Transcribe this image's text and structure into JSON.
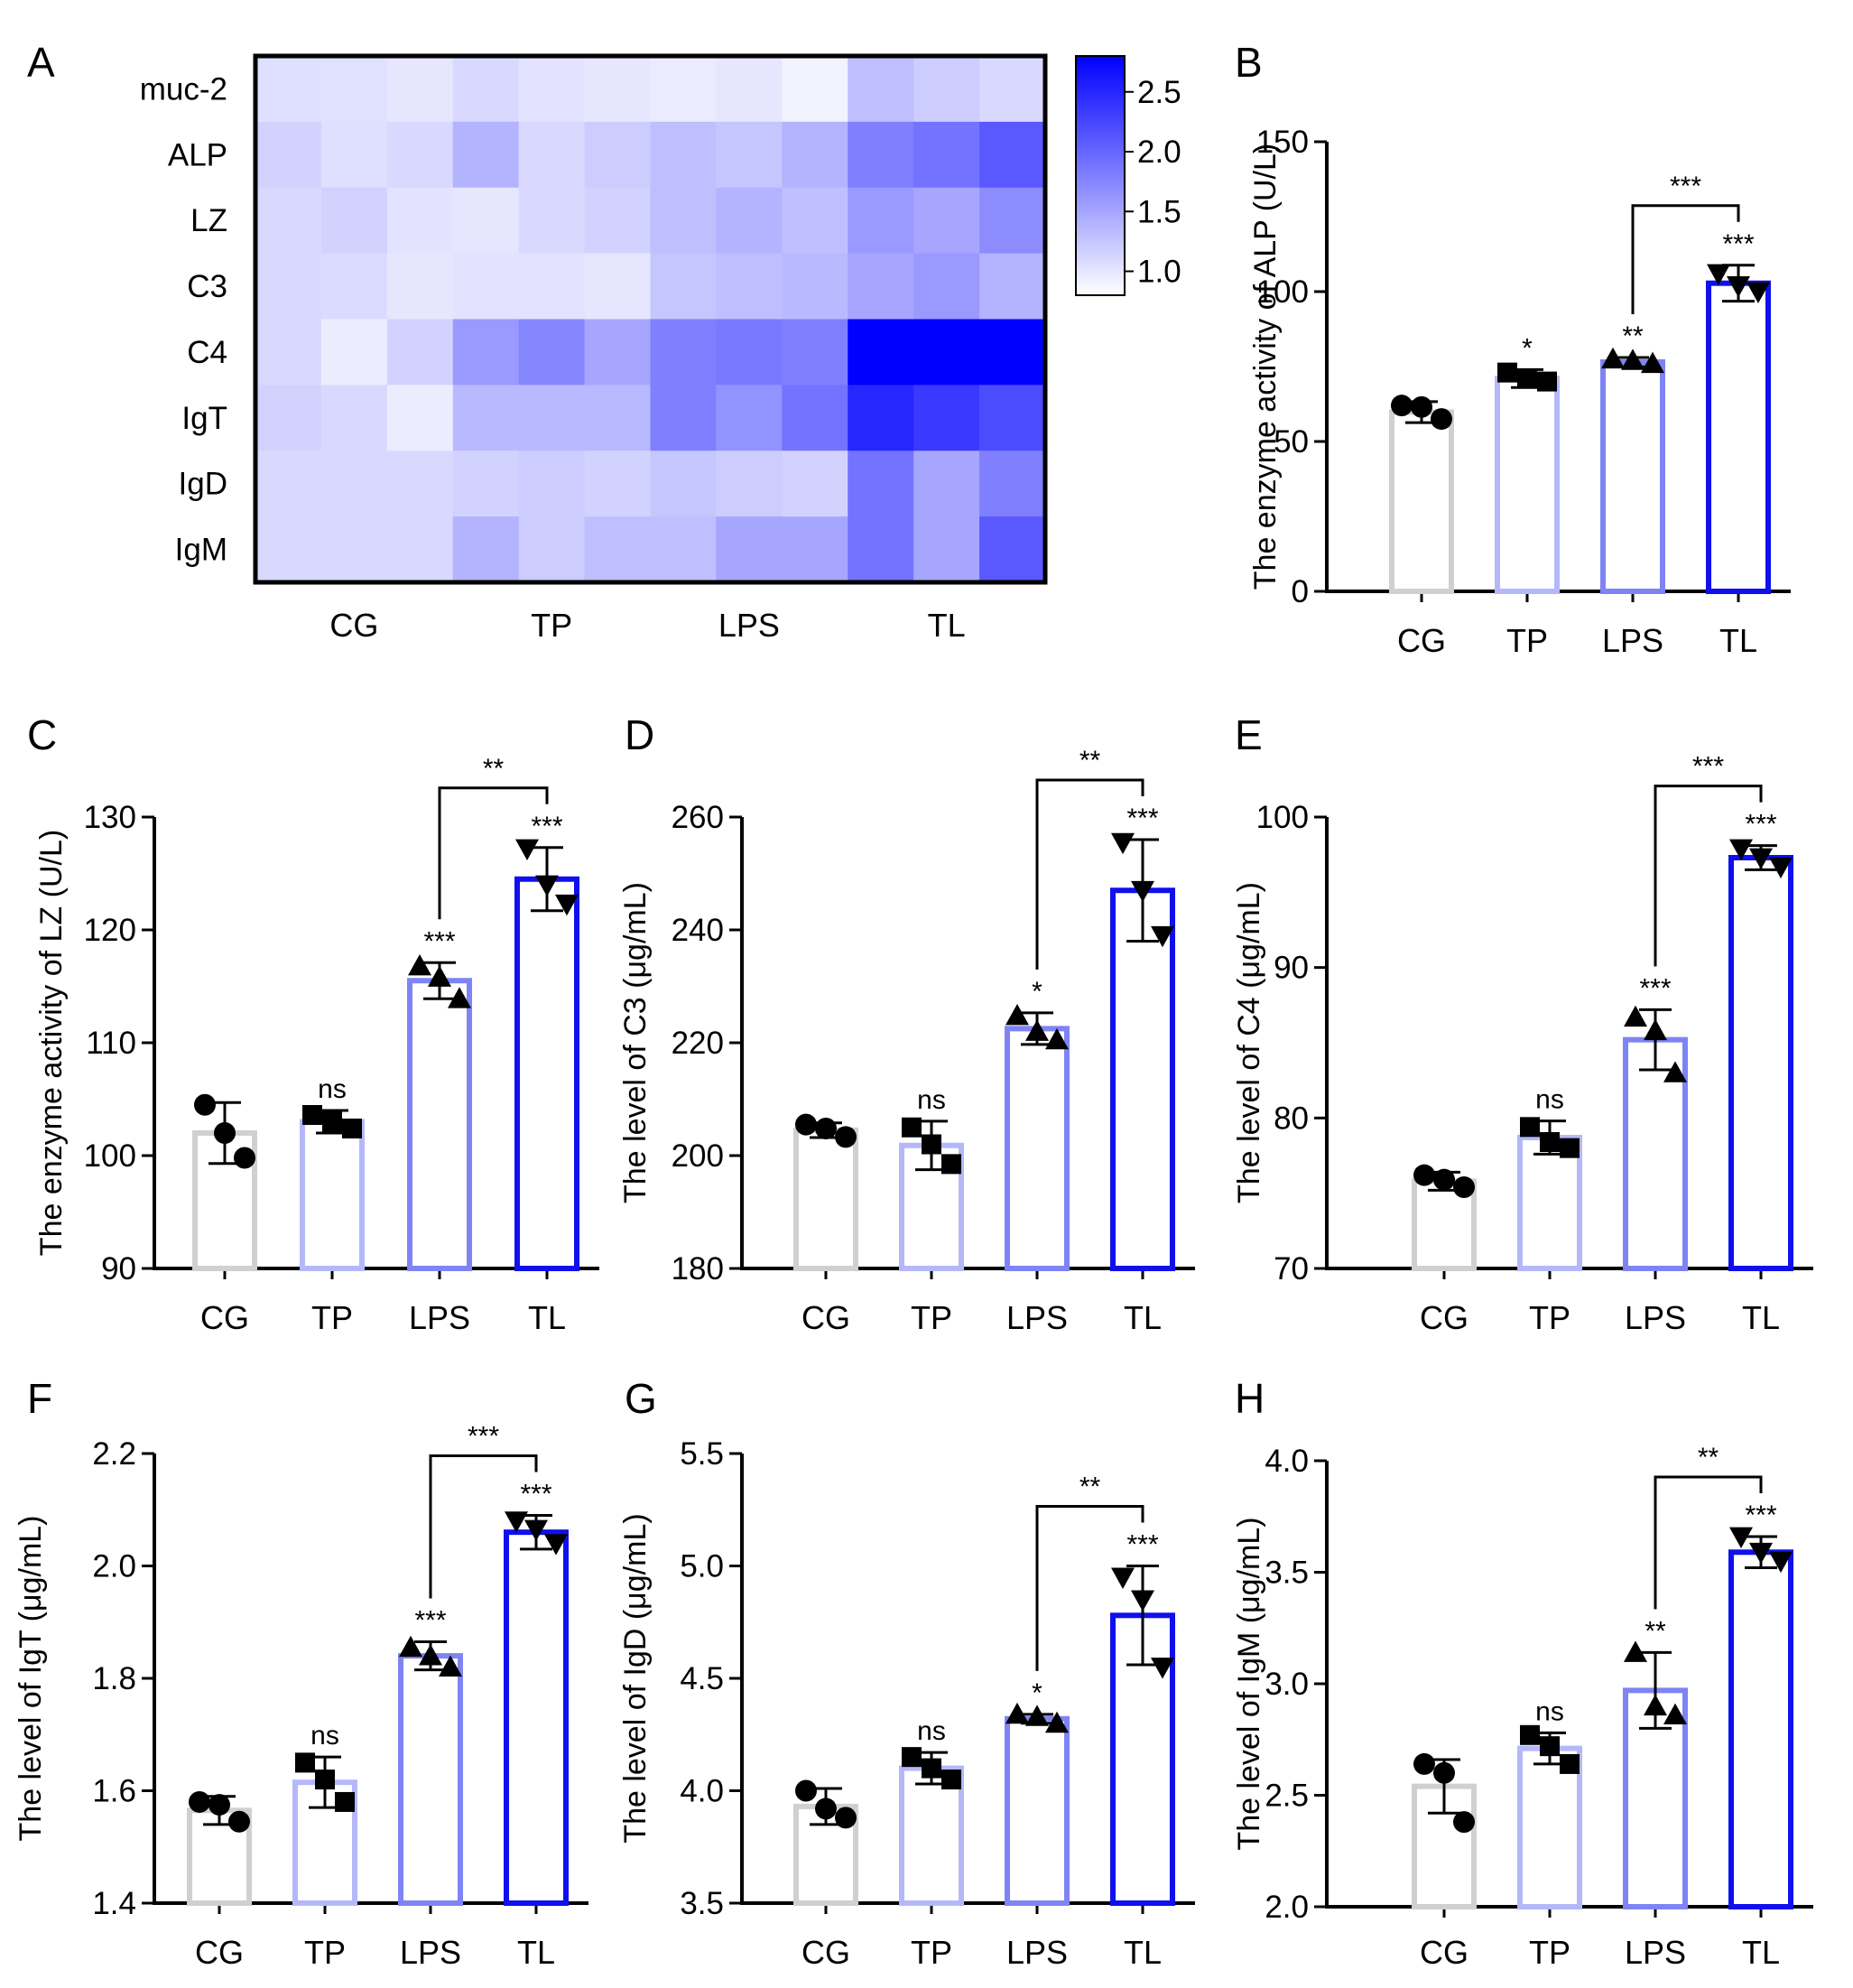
{
  "heatmap": {
    "panel": "A",
    "rows": [
      "muc-2",
      "ALP",
      "LZ",
      "C3",
      "C4",
      "IgT",
      "IgD",
      "IgM"
    ],
    "groups": [
      "CG",
      "TP",
      "LPS",
      "TL"
    ],
    "values": [
      [
        1.05,
        1.04,
        1.0,
        1.1,
        1.02,
        1.0,
        0.96,
        1.0,
        0.9,
        1.3,
        1.2,
        1.1
      ],
      [
        1.15,
        1.05,
        1.1,
        1.4,
        1.1,
        1.2,
        1.3,
        1.25,
        1.4,
        1.8,
        1.9,
        2.1
      ],
      [
        1.1,
        1.15,
        1.02,
        1.0,
        1.1,
        1.15,
        1.3,
        1.4,
        1.3,
        1.6,
        1.5,
        1.7
      ],
      [
        1.1,
        1.08,
        1.0,
        1.02,
        1.02,
        1.0,
        1.25,
        1.3,
        1.35,
        1.5,
        1.6,
        1.4
      ],
      [
        1.1,
        0.95,
        1.15,
        1.6,
        1.75,
        1.5,
        1.8,
        1.85,
        1.8,
        2.8,
        2.95,
        3.0
      ],
      [
        1.15,
        1.1,
        0.95,
        1.35,
        1.35,
        1.35,
        1.8,
        1.65,
        1.9,
        2.5,
        2.35,
        2.2
      ],
      [
        1.1,
        1.1,
        1.1,
        1.15,
        1.2,
        1.15,
        1.25,
        1.2,
        1.15,
        1.9,
        1.5,
        1.8
      ],
      [
        1.1,
        1.1,
        1.1,
        1.4,
        1.2,
        1.3,
        1.3,
        1.5,
        1.5,
        1.9,
        1.5,
        2.1
      ]
    ],
    "colorbar": {
      "min": 0.8,
      "max": 2.8,
      "ticks": [
        "2.5",
        "2.0",
        "1.5",
        "1.0"
      ],
      "low_color": "#ffffff",
      "high_color": "#0000ff"
    }
  },
  "chart_data": [
    {
      "panel": "B",
      "type": "bar",
      "categories": [
        "CG",
        "TP",
        "LPS",
        "TL"
      ],
      "values": [
        59.8,
        71.0,
        76.5,
        102.8
      ],
      "errors": [
        3.5,
        3.0,
        1.5,
        6.0
      ],
      "points": [
        [
          62.0,
          61.5,
          57.5
        ],
        [
          73.0,
          71.0,
          70.0
        ],
        [
          77.5,
          77.0,
          76.0
        ],
        [
          106.0,
          102.0,
          100.0
        ]
      ],
      "ylabel": "The enzyme activity of ALP (U/L)",
      "ylim": [
        0,
        150
      ],
      "yticks": [
        "0",
        "50",
        "100",
        "150"
      ],
      "sig_labels": [
        "",
        "*",
        "**",
        "***"
      ],
      "bracket": {
        "from": "LPS",
        "to": "TL",
        "label": "***"
      }
    },
    {
      "panel": "C",
      "type": "bar",
      "categories": [
        "CG",
        "TP",
        "LPS",
        "TL"
      ],
      "values": [
        102.0,
        103.0,
        115.5,
        124.5
      ],
      "errors": [
        2.7,
        1.0,
        1.6,
        2.8
      ],
      "points": [
        [
          104.5,
          102.0,
          99.8
        ],
        [
          103.6,
          103.0,
          102.4
        ],
        [
          116.8,
          115.8,
          113.9
        ],
        [
          127.2,
          124.0,
          122.3
        ]
      ],
      "ylabel": "The enzyme activity of LZ (U/L)",
      "ylim": [
        90,
        130
      ],
      "yticks": [
        "90",
        "100",
        "110",
        "120",
        "130"
      ],
      "sig_labels": [
        "",
        "ns",
        "***",
        "***"
      ],
      "bracket": {
        "from": "LPS",
        "to": "TL",
        "label": "**"
      }
    },
    {
      "panel": "D",
      "type": "bar",
      "categories": [
        "CG",
        "TP",
        "LPS",
        "TL"
      ],
      "values": [
        204.5,
        201.8,
        222.5,
        247.0
      ],
      "errors": [
        1.3,
        4.3,
        2.8,
        9.0
      ],
      "points": [
        [
          205.5,
          204.8,
          203.3
        ],
        [
          205.0,
          202.0,
          198.5
        ],
        [
          224.8,
          222.0,
          220.5
        ],
        [
          255.5,
          247.0,
          239.0
        ]
      ],
      "ylabel": "The level of C3 (μg/mL)",
      "ylim": [
        180,
        260
      ],
      "yticks": [
        "180",
        "200",
        "220",
        "240",
        "260"
      ],
      "sig_labels": [
        "",
        "ns",
        "*",
        "***"
      ],
      "bracket": {
        "from": "LPS",
        "to": "TL",
        "label": "**"
      }
    },
    {
      "panel": "E",
      "type": "bar",
      "categories": [
        "CG",
        "TP",
        "LPS",
        "TL"
      ],
      "values": [
        75.8,
        78.7,
        85.2,
        97.3
      ],
      "errors": [
        0.6,
        1.1,
        2.0,
        0.8
      ],
      "points": [
        [
          76.2,
          75.9,
          75.4
        ],
        [
          79.4,
          78.4,
          78.0
        ],
        [
          86.7,
          85.8,
          83.0
        ],
        [
          97.9,
          97.3,
          96.7
        ]
      ],
      "ylabel": "The level of C4 (μg/mL)",
      "ylim": [
        70,
        100
      ],
      "yticks": [
        "70",
        "80",
        "90",
        "100"
      ],
      "sig_labels": [
        "",
        "ns",
        "***",
        "***"
      ],
      "bracket": {
        "from": "LPS",
        "to": "TL",
        "label": "***"
      }
    },
    {
      "panel": "F",
      "type": "bar",
      "categories": [
        "CG",
        "TP",
        "LPS",
        "TL"
      ],
      "values": [
        1.565,
        1.615,
        1.84,
        2.06
      ],
      "errors": [
        0.025,
        0.045,
        0.025,
        0.03
      ],
      "points": [
        [
          1.58,
          1.575,
          1.545
        ],
        [
          1.65,
          1.62,
          1.58
        ],
        [
          1.855,
          1.84,
          1.82
        ],
        [
          2.08,
          2.065,
          2.04
        ]
      ],
      "ylabel": "The level of IgT (μg/mL)",
      "ylim": [
        1.4,
        2.2
      ],
      "yticks": [
        "1.4",
        "1.6",
        "1.8",
        "2.0",
        "2.2"
      ],
      "sig_labels": [
        "",
        "ns",
        "***",
        "***"
      ],
      "bracket": {
        "from": "LPS",
        "to": "TL",
        "label": "***"
      }
    },
    {
      "panel": "G",
      "type": "bar",
      "categories": [
        "CG",
        "TP",
        "LPS",
        "TL"
      ],
      "values": [
        3.93,
        4.1,
        4.32,
        4.78
      ],
      "errors": [
        0.08,
        0.07,
        0.02,
        0.22
      ],
      "points": [
        [
          4.0,
          3.92,
          3.88
        ],
        [
          4.15,
          4.1,
          4.05
        ],
        [
          4.34,
          4.33,
          4.3
        ],
        [
          4.95,
          4.85,
          4.55
        ]
      ],
      "ylabel": "The level of IgD (μg/mL)",
      "ylim": [
        3.5,
        5.5
      ],
      "yticks": [
        "3.5",
        "4.0",
        "4.5",
        "5.0",
        "5.5"
      ],
      "sig_labels": [
        "",
        "ns",
        "*",
        "***"
      ],
      "bracket": {
        "from": "LPS",
        "to": "TL",
        "label": "**"
      }
    },
    {
      "panel": "H",
      "type": "bar",
      "categories": [
        "CG",
        "TP",
        "LPS",
        "TL"
      ],
      "values": [
        2.54,
        2.71,
        2.97,
        3.59
      ],
      "errors": [
        0.12,
        0.07,
        0.17,
        0.07
      ],
      "points": [
        [
          2.64,
          2.6,
          2.38
        ],
        [
          2.77,
          2.72,
          2.64
        ],
        [
          3.14,
          2.9,
          2.86
        ],
        [
          3.66,
          3.59,
          3.55
        ]
      ],
      "ylabel": "The level of IgM (μg/mL)",
      "ylim": [
        2.0,
        4.0
      ],
      "yticks": [
        "2.0",
        "2.5",
        "3.0",
        "3.5",
        "4.0"
      ],
      "sig_labels": [
        "",
        "ns",
        "**",
        "***"
      ],
      "bracket": {
        "from": "LPS",
        "to": "TL",
        "label": "**"
      }
    }
  ],
  "style": {
    "bar_colors": [
      "#d0d0d0",
      "#b4b8fb",
      "#7e84f3",
      "#1010ee"
    ],
    "marker_shapes": [
      "circle",
      "square",
      "triangle-up",
      "triangle-down"
    ]
  }
}
